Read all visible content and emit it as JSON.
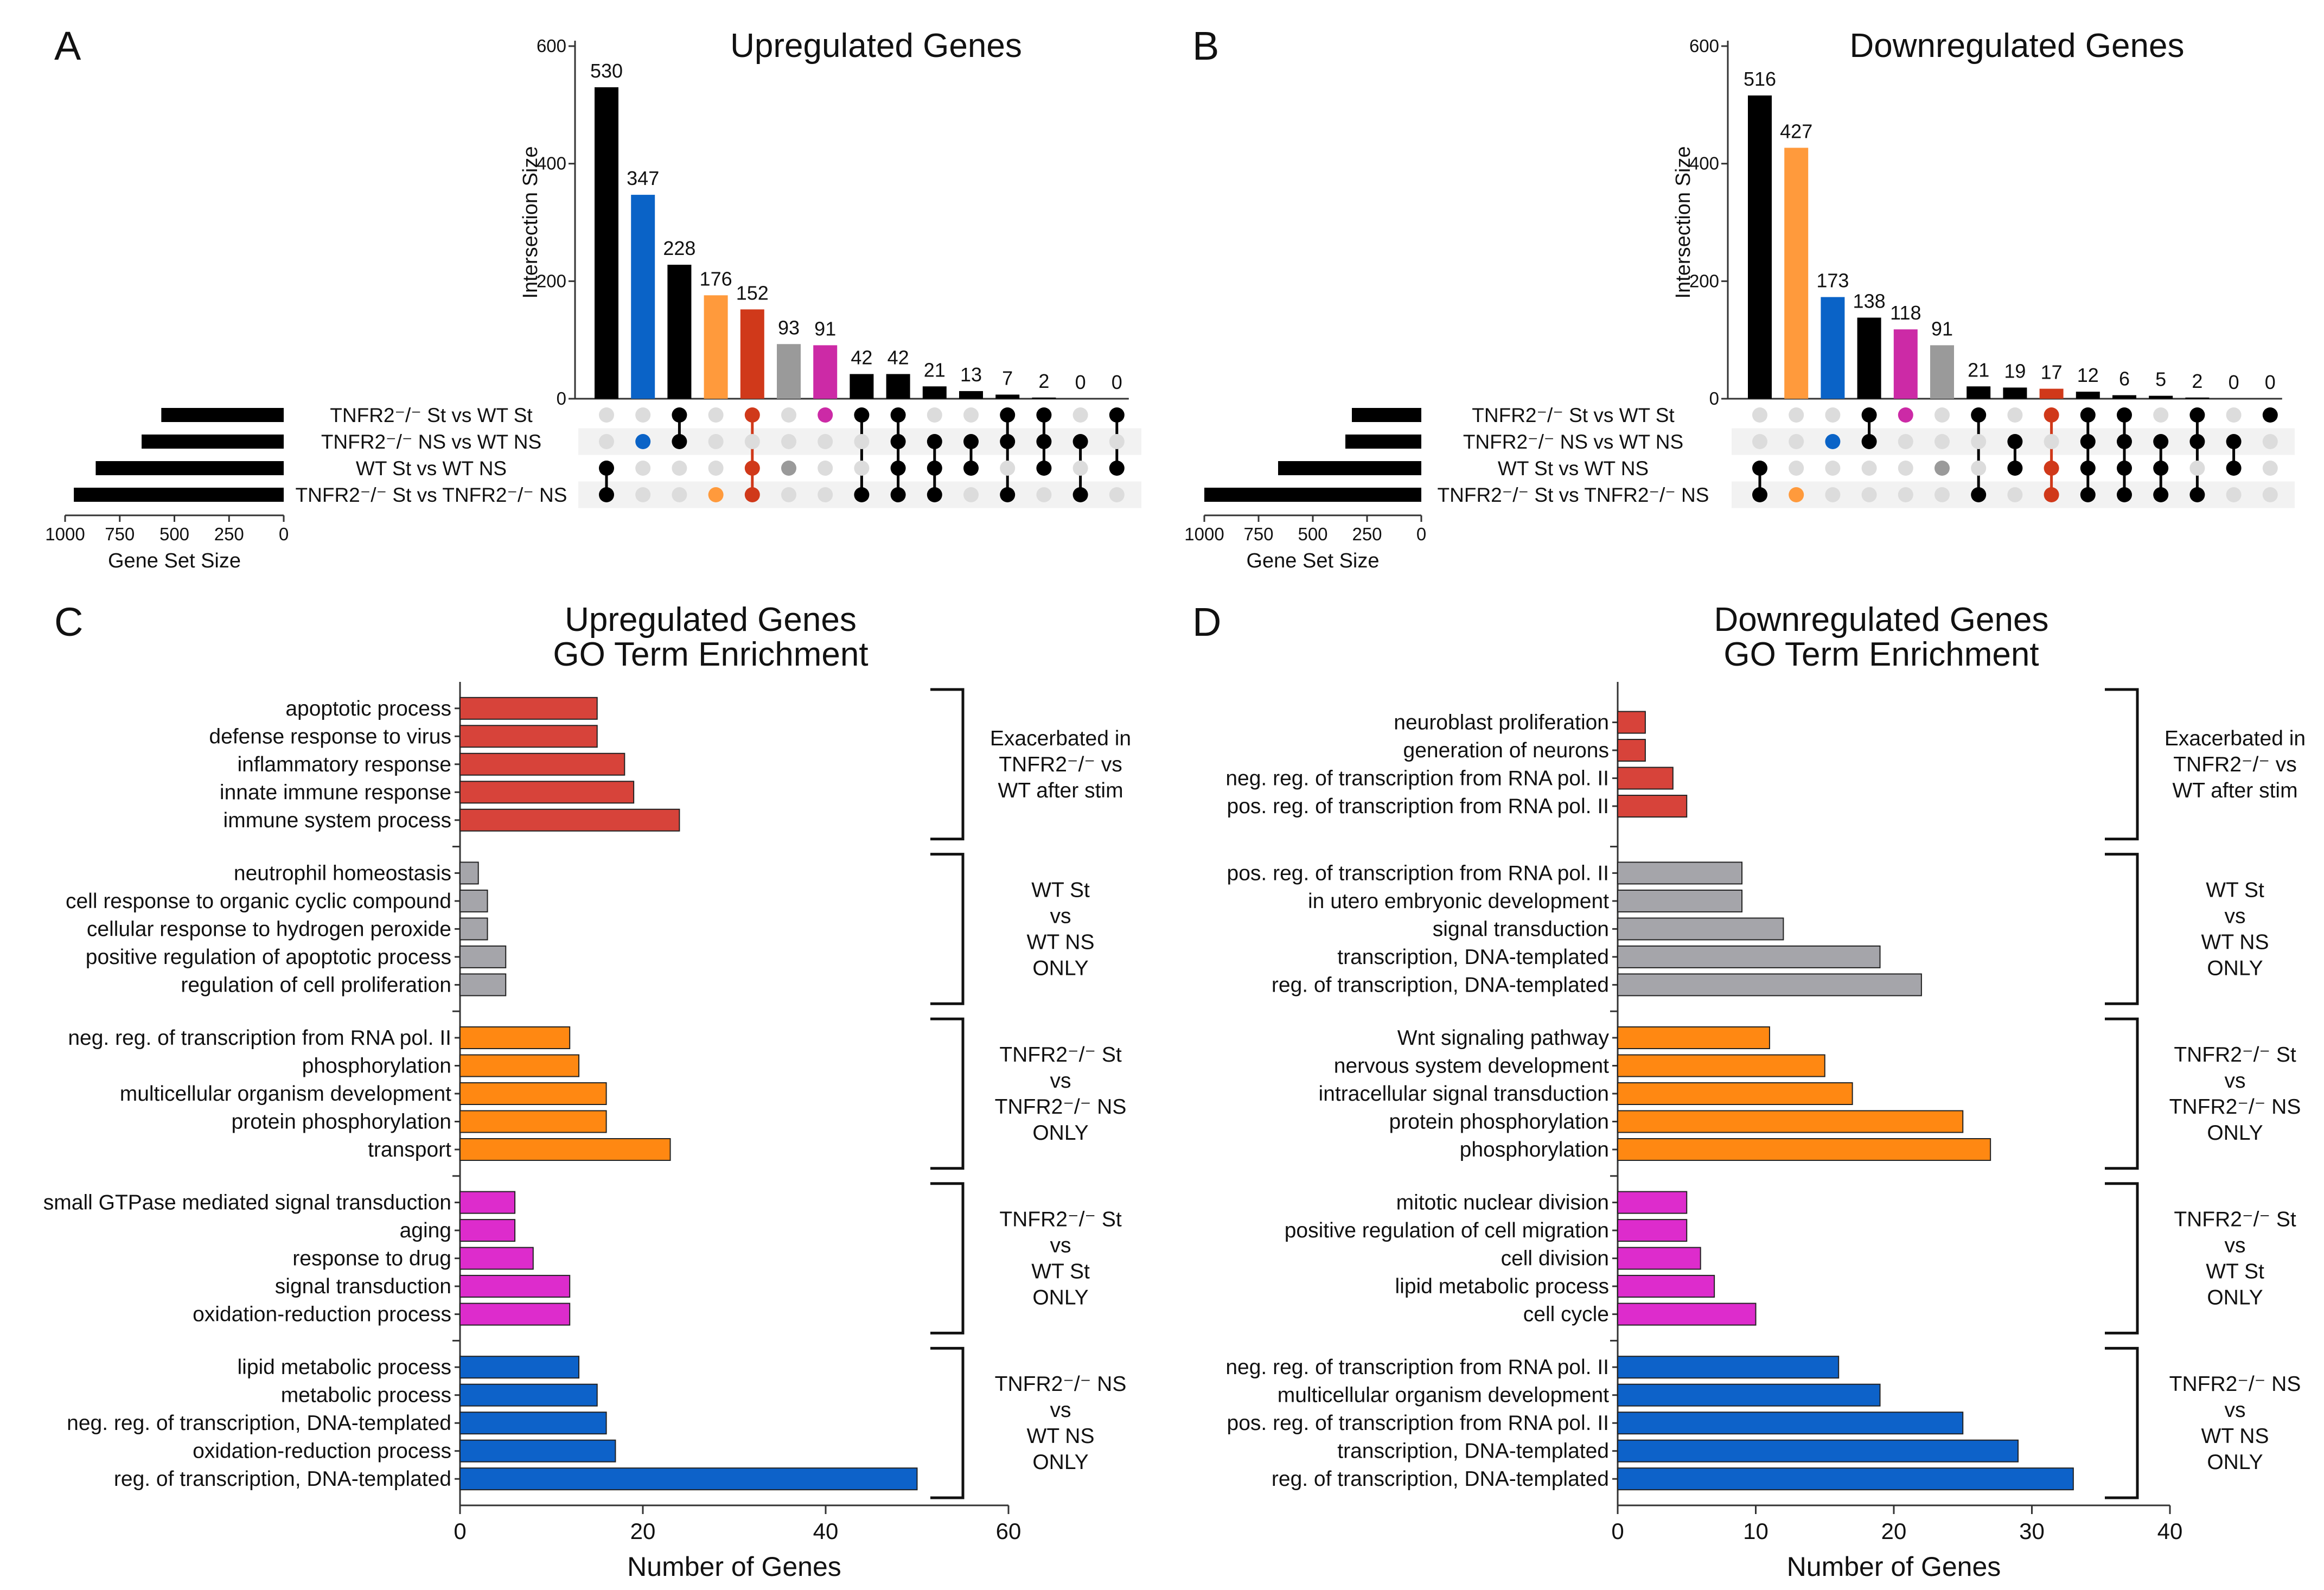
{
  "colors": {
    "black": "#000000",
    "blue": "#0a63c7",
    "orange": "#ff9a3c",
    "red": "#d0391a",
    "gray": "#9a9a9a",
    "magenta": "#cc2aa6",
    "go_red": "#d7433a",
    "go_gray": "#a5a5aa",
    "go_orange": "#ff8812",
    "go_magenta": "#dd2ccc",
    "go_blue": "#0d62c9",
    "dot_inactive": "#dcdcdc",
    "row_band": "#f2f2f2"
  },
  "chart_data": [
    {
      "type": "upset",
      "panel": "A",
      "title": "Upregulated Genes",
      "ylabel": "Intersection Size",
      "ylim": [
        0,
        600
      ],
      "yticks": [
        "0",
        "200",
        "400",
        "600"
      ],
      "set_size_label": "Gene Set Size",
      "set_size_ticks": [
        "1000",
        "750",
        "500",
        "250",
        "0"
      ],
      "set_size_max": 1000,
      "sets": [
        {
          "name": "TNFR2⁻/⁻ St vs WT St",
          "size": 560
        },
        {
          "name": "TNFR2⁻/⁻ NS vs WT NS",
          "size": 650
        },
        {
          "name": "WT St vs WT NS",
          "size": 860
        },
        {
          "name": "TNFR2⁻/⁻ St vs TNFR2⁻/⁻ NS",
          "size": 960
        }
      ],
      "intersections": [
        {
          "value": 530,
          "label": "530",
          "color": "black",
          "members": [
            false,
            false,
            true,
            true
          ]
        },
        {
          "value": 347,
          "label": "347",
          "color": "blue",
          "members": [
            false,
            true,
            false,
            false
          ]
        },
        {
          "value": 228,
          "label": "228",
          "color": "black",
          "members": [
            true,
            true,
            false,
            false
          ]
        },
        {
          "value": 176,
          "label": "176",
          "color": "orange",
          "members": [
            false,
            false,
            false,
            true
          ]
        },
        {
          "value": 152,
          "label": "152",
          "color": "red",
          "members": [
            true,
            false,
            true,
            true
          ]
        },
        {
          "value": 93,
          "label": "93",
          "color": "gray",
          "members": [
            false,
            false,
            true,
            false
          ]
        },
        {
          "value": 91,
          "label": "91",
          "color": "magenta",
          "members": [
            true,
            false,
            false,
            false
          ]
        },
        {
          "value": 42,
          "label": "42",
          "color": "black",
          "members": [
            true,
            false,
            false,
            true
          ]
        },
        {
          "value": 42,
          "label": "42",
          "color": "black",
          "members": [
            true,
            true,
            true,
            true
          ]
        },
        {
          "value": 21,
          "label": "21",
          "color": "black",
          "members": [
            false,
            true,
            true,
            true
          ]
        },
        {
          "value": 13,
          "label": "13",
          "color": "black",
          "members": [
            false,
            true,
            true,
            false
          ]
        },
        {
          "value": 7,
          "label": "7",
          "color": "black",
          "members": [
            true,
            true,
            false,
            true
          ]
        },
        {
          "value": 2,
          "label": "2",
          "color": "black",
          "members": [
            true,
            true,
            true,
            false
          ]
        },
        {
          "value": 0,
          "label": "0",
          "color": "black",
          "members": [
            false,
            true,
            false,
            true
          ]
        },
        {
          "value": 0,
          "label": "0",
          "color": "black",
          "members": [
            true,
            false,
            true,
            false
          ]
        }
      ]
    },
    {
      "type": "upset",
      "panel": "B",
      "title": "Downregulated Genes",
      "ylabel": "Intersection Size",
      "ylim": [
        0,
        600
      ],
      "yticks": [
        "0",
        "200",
        "400",
        "600"
      ],
      "set_size_label": "Gene Set Size",
      "set_size_ticks": [
        "1000",
        "750",
        "500",
        "250",
        "0"
      ],
      "set_size_max": 1000,
      "sets": [
        {
          "name": "TNFR2⁻/⁻ St vs WT St",
          "size": 320
        },
        {
          "name": "TNFR2⁻/⁻ NS vs WT NS",
          "size": 350
        },
        {
          "name": "WT St vs WT NS",
          "size": 660
        },
        {
          "name": "TNFR2⁻/⁻ St vs TNFR2⁻/⁻ NS",
          "size": 1000
        }
      ],
      "intersections": [
        {
          "value": 516,
          "label": "516",
          "color": "black",
          "members": [
            false,
            false,
            true,
            true
          ]
        },
        {
          "value": 427,
          "label": "427",
          "color": "orange",
          "members": [
            false,
            false,
            false,
            true
          ]
        },
        {
          "value": 173,
          "label": "173",
          "color": "blue",
          "members": [
            false,
            true,
            false,
            false
          ]
        },
        {
          "value": 138,
          "label": "138",
          "color": "black",
          "members": [
            true,
            true,
            false,
            false
          ]
        },
        {
          "value": 118,
          "label": "118",
          "color": "magenta",
          "members": [
            true,
            false,
            false,
            false
          ]
        },
        {
          "value": 91,
          "label": "91",
          "color": "gray",
          "members": [
            false,
            false,
            true,
            false
          ]
        },
        {
          "value": 21,
          "label": "21",
          "color": "black",
          "members": [
            true,
            false,
            false,
            true
          ]
        },
        {
          "value": 19,
          "label": "19",
          "color": "black",
          "members": [
            false,
            true,
            true,
            false
          ]
        },
        {
          "value": 17,
          "label": "17",
          "color": "red",
          "members": [
            true,
            false,
            true,
            true
          ]
        },
        {
          "value": 12,
          "label": "12",
          "color": "black",
          "members": [
            true,
            true,
            true,
            true
          ]
        },
        {
          "value": 6,
          "label": "6",
          "color": "black",
          "members": [
            true,
            true,
            true,
            true
          ]
        },
        {
          "value": 5,
          "label": "5",
          "color": "black",
          "members": [
            false,
            true,
            true,
            true
          ]
        },
        {
          "value": 2,
          "label": "2",
          "color": "black",
          "members": [
            true,
            true,
            false,
            true
          ]
        },
        {
          "value": 0,
          "label": "0",
          "color": "black",
          "members": [
            false,
            true,
            true,
            false
          ]
        },
        {
          "value": 0,
          "label": "0",
          "color": "black",
          "members": [
            true,
            false,
            false,
            false
          ]
        }
      ]
    },
    {
      "type": "bar",
      "orientation": "horizontal",
      "panel": "C",
      "title": [
        "Upregulated Genes",
        "GO Term Enrichment"
      ],
      "xlabel": "Number of Genes",
      "xlim": [
        0,
        60
      ],
      "xticks": [
        "0",
        "20",
        "40",
        "60"
      ],
      "groups": [
        {
          "label": [
            "Exacerbated in",
            "TNFR2⁻/⁻ vs",
            "WT after stim"
          ],
          "color": "go_red",
          "terms": [
            {
              "term": "apoptotic process",
              "value": 15
            },
            {
              "term": "defense response to virus",
              "value": 15
            },
            {
              "term": "inflammatory response",
              "value": 18
            },
            {
              "term": "innate immune response",
              "value": 19
            },
            {
              "term": "immune system process",
              "value": 24
            }
          ]
        },
        {
          "label": [
            "WT St",
            "vs",
            "WT NS",
            "ONLY"
          ],
          "color": "go_gray",
          "terms": [
            {
              "term": "neutrophil homeostasis",
              "value": 2
            },
            {
              "term": "cell response to organic cyclic compound",
              "value": 3
            },
            {
              "term": "cellular response to hydrogen peroxide",
              "value": 3
            },
            {
              "term": "positive regulation of apoptotic process",
              "value": 5
            },
            {
              "term": "regulation of cell proliferation",
              "value": 5
            }
          ]
        },
        {
          "label": [
            "TNFR2⁻/⁻ St",
            "vs",
            "TNFR2⁻/⁻ NS",
            "ONLY"
          ],
          "color": "go_orange",
          "terms": [
            {
              "term": "neg. reg. of transcription from RNA pol. II",
              "value": 12
            },
            {
              "term": "phosphorylation",
              "value": 13
            },
            {
              "term": "multicellular organism development",
              "value": 16
            },
            {
              "term": "protein phosphorylation",
              "value": 16
            },
            {
              "term": "transport",
              "value": 23
            }
          ]
        },
        {
          "label": [
            "TNFR2⁻/⁻ St",
            "vs",
            "WT St",
            "ONLY"
          ],
          "color": "go_magenta",
          "terms": [
            {
              "term": "small GTPase mediated signal transduction",
              "value": 6
            },
            {
              "term": "aging",
              "value": 6
            },
            {
              "term": "response to drug",
              "value": 8
            },
            {
              "term": "signal transduction",
              "value": 12
            },
            {
              "term": "oxidation-reduction process",
              "value": 12
            }
          ]
        },
        {
          "label": [
            "TNFR2⁻/⁻ NS",
            "vs",
            "WT NS",
            "ONLY"
          ],
          "color": "go_blue",
          "terms": [
            {
              "term": "lipid metabolic process",
              "value": 13
            },
            {
              "term": "metabolic process",
              "value": 15
            },
            {
              "term": "neg. reg. of transcription, DNA-templated",
              "value": 16
            },
            {
              "term": "oxidation-reduction process",
              "value": 17
            },
            {
              "term": "reg. of transcription, DNA-templated",
              "value": 50
            }
          ]
        }
      ]
    },
    {
      "type": "bar",
      "orientation": "horizontal",
      "panel": "D",
      "title": [
        "Downregulated Genes",
        "GO Term Enrichment"
      ],
      "xlabel": "Number of Genes",
      "xlim": [
        0,
        40
      ],
      "xticks": [
        "0",
        "10",
        "20",
        "30",
        "40"
      ],
      "groups": [
        {
          "label": [
            "Exacerbated in",
            "TNFR2⁻/⁻ vs",
            "WT after stim"
          ],
          "color": "go_red",
          "terms": [
            {
              "term": "neuroblast proliferation",
              "value": 2
            },
            {
              "term": "generation of neurons",
              "value": 2
            },
            {
              "term": "neg. reg. of transcription from RNA pol. II",
              "value": 4
            },
            {
              "term": "pos. reg. of transcription from RNA pol. II",
              "value": 5
            }
          ]
        },
        {
          "label": [
            "WT St",
            "vs",
            "WT NS",
            "ONLY"
          ],
          "color": "go_gray",
          "terms": [
            {
              "term": "pos. reg. of transcription from RNA pol. II",
              "value": 9
            },
            {
              "term": "in utero embryonic development",
              "value": 9
            },
            {
              "term": "signal transduction",
              "value": 12
            },
            {
              "term": "transcription, DNA-templated",
              "value": 19
            },
            {
              "term": "reg. of transcription, DNA-templated",
              "value": 22
            }
          ]
        },
        {
          "label": [
            "TNFR2⁻/⁻ St",
            "vs",
            "TNFR2⁻/⁻ NS",
            "ONLY"
          ],
          "color": "go_orange",
          "terms": [
            {
              "term": "Wnt signaling pathway",
              "value": 11
            },
            {
              "term": "nervous system development",
              "value": 15
            },
            {
              "term": "intracellular signal transduction",
              "value": 17
            },
            {
              "term": "protein phosphorylation",
              "value": 25
            },
            {
              "term": "phosphorylation",
              "value": 27
            }
          ]
        },
        {
          "label": [
            "TNFR2⁻/⁻ St",
            "vs",
            "WT St",
            "ONLY"
          ],
          "color": "go_magenta",
          "terms": [
            {
              "term": "mitotic nuclear division",
              "value": 5
            },
            {
              "term": "positive regulation of cell migration",
              "value": 5
            },
            {
              "term": "cell division",
              "value": 6
            },
            {
              "term": "lipid metabolic process",
              "value": 7
            },
            {
              "term": "cell cycle",
              "value": 10
            }
          ]
        },
        {
          "label": [
            "TNFR2⁻/⁻ NS",
            "vs",
            "WT NS",
            "ONLY"
          ],
          "color": "go_blue",
          "terms": [
            {
              "term": "neg. reg. of transcription from RNA pol. II",
              "value": 16
            },
            {
              "term": "multicellular organism development",
              "value": 19
            },
            {
              "term": "pos. reg. of transcription from RNA pol. II",
              "value": 25
            },
            {
              "term": "transcription, DNA-templated",
              "value": 29
            },
            {
              "term": "reg. of transcription, DNA-templated",
              "value": 33
            }
          ]
        }
      ]
    }
  ]
}
